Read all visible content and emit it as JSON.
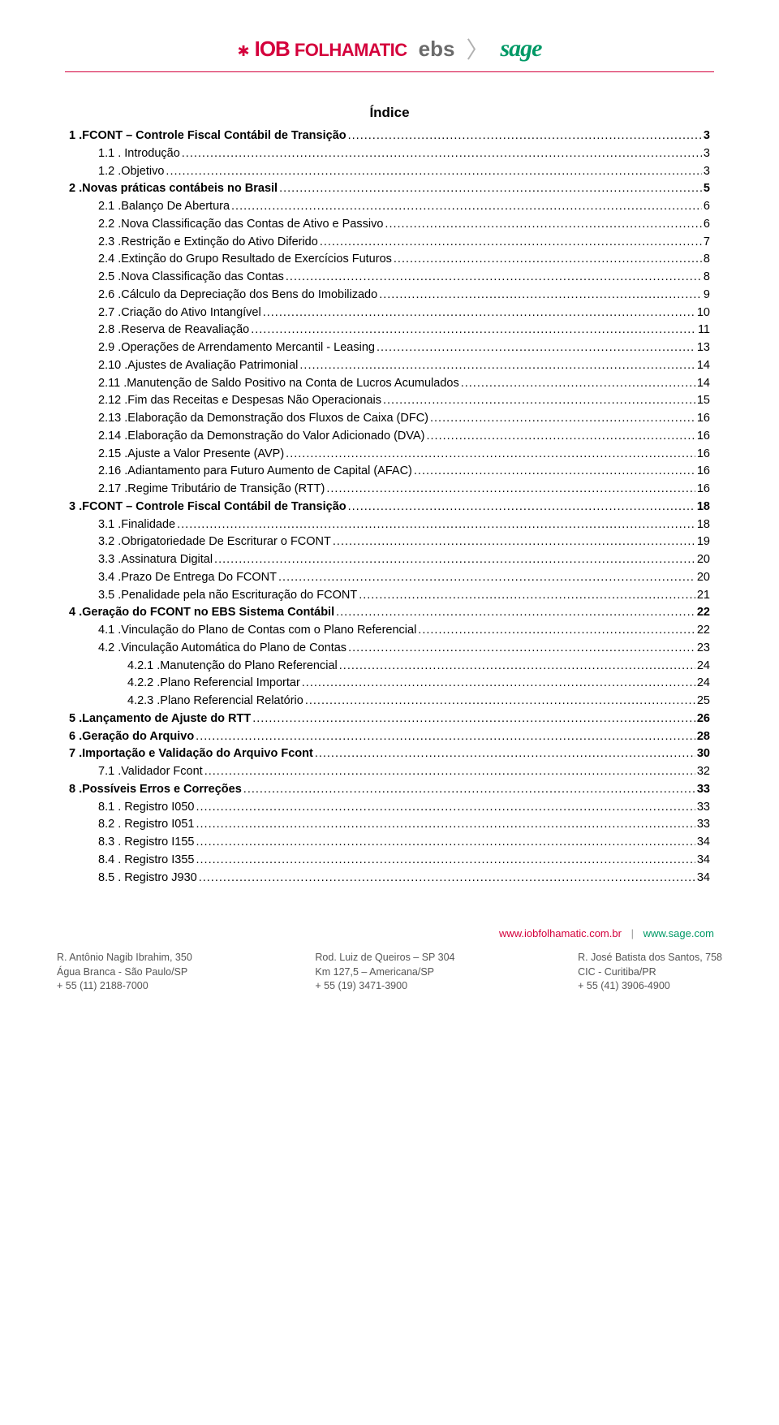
{
  "header": {
    "iob_star": "✱",
    "iob_text": "IOB",
    "iob_sub": "FOLHAMATIC",
    "ebs": "ebs",
    "rangle": "〉",
    "sage": "sage"
  },
  "title": "Índice",
  "toc": [
    {
      "indent": 0,
      "bold": true,
      "num": "1",
      "text": ".FCONT – Controle Fiscal Contábil de Transição",
      "page": "3"
    },
    {
      "indent": 1,
      "bold": false,
      "num": "1.1",
      "text": ". Introdução",
      "page": "3"
    },
    {
      "indent": 1,
      "bold": false,
      "num": "1.2",
      "text": ".Objetivo",
      "page": "3"
    },
    {
      "indent": 0,
      "bold": true,
      "num": "2",
      "text": ".Novas práticas contábeis no Brasil",
      "page": "5"
    },
    {
      "indent": 1,
      "bold": false,
      "num": "2.1",
      "text": ".Balanço De Abertura",
      "page": "6"
    },
    {
      "indent": 1,
      "bold": false,
      "num": "2.2",
      "text": ".Nova Classificação das Contas de Ativo e Passivo",
      "page": "6"
    },
    {
      "indent": 1,
      "bold": false,
      "num": "2.3",
      "text": ".Restrição e Extinção do Ativo Diferido",
      "page": "7"
    },
    {
      "indent": 1,
      "bold": false,
      "num": "2.4",
      "text": ".Extinção do Grupo Resultado de Exercícios Futuros",
      "page": "8"
    },
    {
      "indent": 1,
      "bold": false,
      "num": "2.5",
      "text": ".Nova Classificação das Contas",
      "page": "8"
    },
    {
      "indent": 1,
      "bold": false,
      "num": "2.6",
      "text": ".Cálculo da Depreciação dos Bens do Imobilizado",
      "page": "9"
    },
    {
      "indent": 1,
      "bold": false,
      "num": "2.7",
      "text": ".Criação do Ativo Intangível",
      "page": "10"
    },
    {
      "indent": 1,
      "bold": false,
      "num": "2.8",
      "text": ".Reserva de Reavaliação",
      "page": "11"
    },
    {
      "indent": 1,
      "bold": false,
      "num": "2.9",
      "text": ".Operações de Arrendamento Mercantil - Leasing",
      "page": "13"
    },
    {
      "indent": 1,
      "bold": false,
      "num": "2.10",
      "text": ".Ajustes de Avaliação Patrimonial",
      "page": "14"
    },
    {
      "indent": 1,
      "bold": false,
      "num": "2.11",
      "text": ".Manutenção de Saldo Positivo na Conta de Lucros Acumulados",
      "page": "14"
    },
    {
      "indent": 1,
      "bold": false,
      "num": "2.12",
      "text": ".Fim das Receitas e Despesas Não Operacionais",
      "page": "15"
    },
    {
      "indent": 1,
      "bold": false,
      "num": "2.13",
      "text": ".Elaboração da Demonstração dos Fluxos de Caixa (DFC)",
      "page": "16"
    },
    {
      "indent": 1,
      "bold": false,
      "num": "2.14",
      "text": ".Elaboração da Demonstração do Valor Adicionado (DVA)",
      "page": "16"
    },
    {
      "indent": 1,
      "bold": false,
      "num": "2.15",
      "text": ".Ajuste a Valor Presente (AVP)",
      "page": "16"
    },
    {
      "indent": 1,
      "bold": false,
      "num": "2.16",
      "text": ".Adiantamento para Futuro Aumento de Capital (AFAC)",
      "page": "16"
    },
    {
      "indent": 1,
      "bold": false,
      "num": "2.17",
      "text": ".Regime Tributário de Transição (RTT)",
      "page": "16"
    },
    {
      "indent": 0,
      "bold": true,
      "num": "3",
      "text": ".FCONT – Controle Fiscal Contábil de Transição",
      "page": "18"
    },
    {
      "indent": 1,
      "bold": false,
      "num": "3.1",
      "text": ".Finalidade",
      "page": "18"
    },
    {
      "indent": 1,
      "bold": false,
      "num": "3.2",
      "text": ".Obrigatoriedade De Escriturar o FCONT",
      "page": "19"
    },
    {
      "indent": 1,
      "bold": false,
      "num": "3.3",
      "text": ".Assinatura Digital",
      "page": "20"
    },
    {
      "indent": 1,
      "bold": false,
      "num": "3.4",
      "text": ".Prazo De Entrega Do FCONT",
      "page": "20"
    },
    {
      "indent": 1,
      "bold": false,
      "num": "3.5",
      "text": ".Penalidade pela não Escrituração do FCONT",
      "page": "21"
    },
    {
      "indent": 0,
      "bold": true,
      "num": "4",
      "text": ".Geração do FCONT no EBS Sistema Contábil",
      "page": "22"
    },
    {
      "indent": 1,
      "bold": false,
      "num": "4.1",
      "text": ".Vinculação do Plano de Contas com o Plano Referencial",
      "page": "22"
    },
    {
      "indent": 1,
      "bold": false,
      "num": "4.2",
      "text": ".Vinculação Automática do Plano de Contas",
      "page": "23"
    },
    {
      "indent": 2,
      "bold": false,
      "num": "4.2.1",
      "text": ".Manutenção do Plano Referencial",
      "page": "24"
    },
    {
      "indent": 2,
      "bold": false,
      "num": "4.2.2",
      "text": ".Plano Referencial Importar",
      "page": "24"
    },
    {
      "indent": 2,
      "bold": false,
      "num": "4.2.3",
      "text": ".Plano Referencial Relatório",
      "page": "25"
    },
    {
      "indent": 0,
      "bold": true,
      "num": "5",
      "text": ".Lançamento de Ajuste do RTT",
      "page": "26"
    },
    {
      "indent": 0,
      "bold": true,
      "num": "6",
      "text": ".Geração do Arquivo",
      "page": "28"
    },
    {
      "indent": 0,
      "bold": true,
      "num": "7",
      "text": ".Importação e Validação do Arquivo Fcont",
      "page": "30"
    },
    {
      "indent": 1,
      "bold": false,
      "num": "7.1",
      "text": ".Validador Fcont",
      "page": "32"
    },
    {
      "indent": 0,
      "bold": true,
      "num": "8",
      "text": ".Possíveis Erros e Correções",
      "page": "33"
    },
    {
      "indent": 1,
      "bold": false,
      "num": "8.1",
      "text": ". Registro I050",
      "page": "33"
    },
    {
      "indent": 1,
      "bold": false,
      "num": "8.2",
      "text": ". Registro I051",
      "page": "33"
    },
    {
      "indent": 1,
      "bold": false,
      "num": "8.3",
      "text": ". Registro I155",
      "page": "34"
    },
    {
      "indent": 1,
      "bold": false,
      "num": "8.4",
      "text": ". Registro I355",
      "page": "34"
    },
    {
      "indent": 1,
      "bold": false,
      "num": "8.5",
      "text": ". Registro J930",
      "page": "34"
    }
  ],
  "footer": {
    "link1": "www.iobfolhamatic.com.br",
    "sep": "|",
    "link2": "www.sage.com",
    "cols": [
      [
        "R. Antônio Nagib Ibrahim, 350",
        "Água Branca - São Paulo/SP",
        "+ 55 (11) 2188-7000"
      ],
      [
        "Rod. Luiz de Queiros – SP 304",
        "Km 127,5 – Americana/SP",
        "+ 55 (19) 3471-3900"
      ],
      [
        "R. José Batista dos Santos, 758",
        "CIC - Curitiba/PR",
        "+ 55 (41) 3906-4900"
      ]
    ]
  }
}
